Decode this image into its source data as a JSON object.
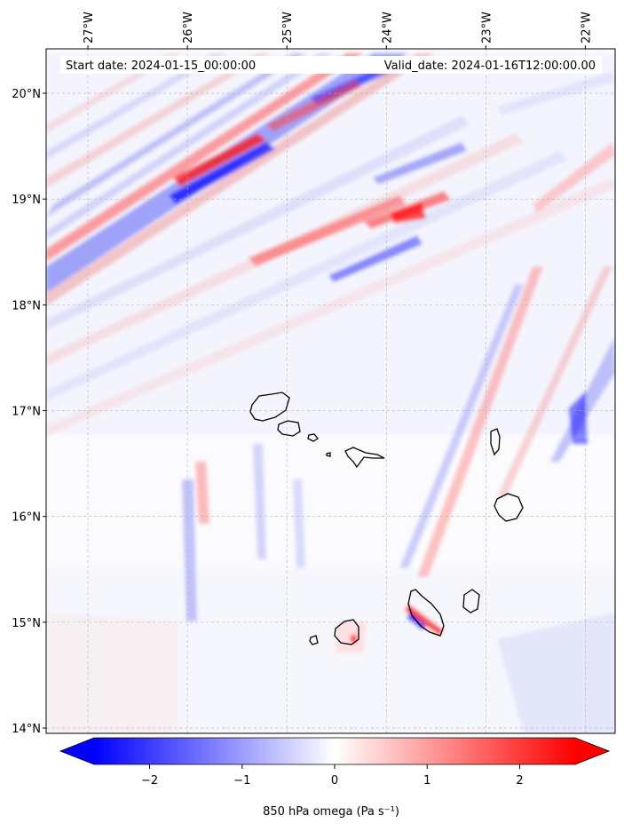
{
  "map": {
    "start_date_text": "Start date: 2024-01-15_00:00:00",
    "valid_date_text": "Valid_date: 2024-01-16T12:00:00.00",
    "lon_ticks": [
      {
        "value": -27,
        "label": "27°W"
      },
      {
        "value": -26,
        "label": "26°W"
      },
      {
        "value": -25,
        "label": "25°W"
      },
      {
        "value": -24,
        "label": "24°W"
      },
      {
        "value": -23,
        "label": "23°W"
      },
      {
        "value": -22,
        "label": "22°W"
      }
    ],
    "lat_ticks": [
      {
        "value": 20,
        "label": "20°N"
      },
      {
        "value": 19,
        "label": "19°N"
      },
      {
        "value": 18,
        "label": "18°N"
      },
      {
        "value": 17,
        "label": "17°N"
      },
      {
        "value": 16,
        "label": "16°N"
      },
      {
        "value": 15,
        "label": "15°N"
      },
      {
        "value": 14,
        "label": "14°N"
      }
    ],
    "lon_range": [
      -27.42,
      -21.7
    ],
    "lat_range": [
      13.95,
      20.42
    ],
    "gridlines": true,
    "field": "850 hPa omega",
    "colors": {
      "negative": "#0000ff",
      "neutral": "#ffffff",
      "positive": "#ff0000",
      "coast": "#000000"
    }
  },
  "colorbar": {
    "label": "850 hPa omega (Pa s⁻¹)",
    "range": [
      -2.6,
      2.6
    ],
    "ticks": [
      {
        "value": -2,
        "label": "−2"
      },
      {
        "value": -1,
        "label": "−1"
      },
      {
        "value": 0,
        "label": "0"
      },
      {
        "value": 1,
        "label": "1"
      },
      {
        "value": 2,
        "label": "2"
      }
    ],
    "extend": "both",
    "cmap": "bwr"
  }
}
